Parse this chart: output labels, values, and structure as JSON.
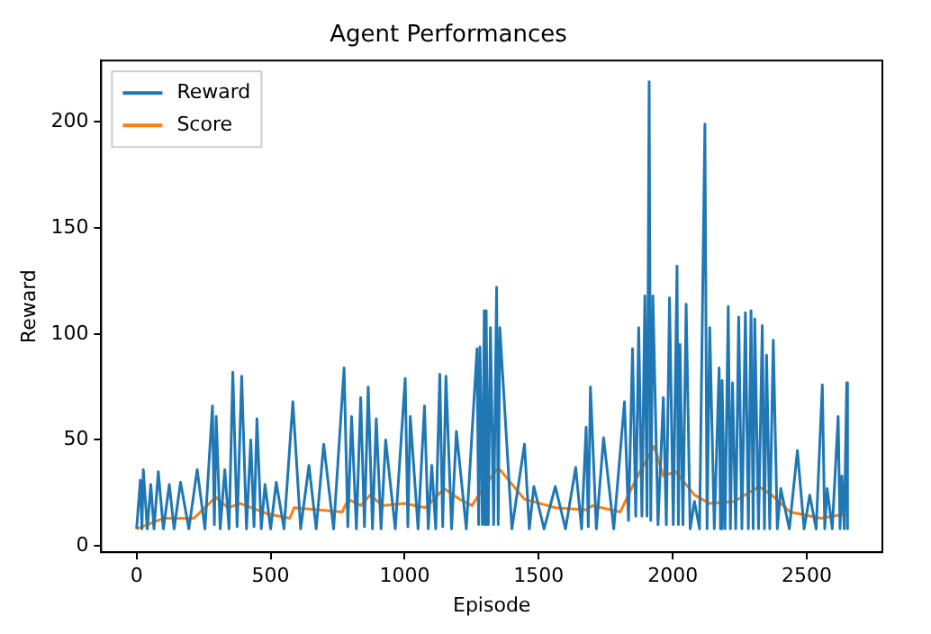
{
  "chart_data": {
    "type": "line",
    "title": "Agent Performances",
    "xlabel": "Episode",
    "ylabel": "Reward",
    "xlim": [
      -132,
      2782
    ],
    "xticks": [
      0,
      500,
      1000,
      1500,
      2000,
      2500
    ],
    "ylim": [
      -3,
      229
    ],
    "yticks": [
      0,
      50,
      100,
      150,
      200
    ],
    "grid": false,
    "legend": "top left",
    "marker": "none",
    "line_style": "solid",
    "series": [
      {
        "name": "Reward",
        "color": "#1f77b4",
        "x": [
          0,
          14,
          20,
          25,
          40,
          53,
          65,
          81,
          100,
          122,
          140,
          164,
          195,
          226,
          255,
          283,
          290,
          297,
          312,
          329,
          345,
          359,
          375,
          392,
          410,
          426,
          438,
          449,
          465,
          479,
          500,
          521,
          550,
          583,
          612,
          643,
          670,
          698,
          735,
          774,
          788,
          802,
          820,
          836,
          850,
          864,
          880,
          894,
          912,
          929,
          965,
          1002,
          1012,
          1021,
          1050,
          1074,
          1088,
          1101,
          1116,
          1131,
          1142,
          1154,
          1175,
          1193,
          1230,
          1270,
          1276,
          1281,
          1290,
          1297,
          1300,
          1304,
          1312,
          1320,
          1332,
          1343,
          1349,
          1355,
          1400,
          1447,
          1465,
          1482,
          1520,
          1562,
          1600,
          1638,
          1660,
          1677,
          1685,
          1693,
          1715,
          1742,
          1780,
          1820,
          1835,
          1850,
          1862,
          1873,
          1885,
          1896,
          1904,
          1912,
          1918,
          1926,
          1945,
          1965,
          1976,
          1988,
          2002,
          2016,
          2021,
          2027,
          2038,
          2050,
          2065,
          2081,
          2100,
          2120,
          2128,
          2138,
          2155,
          2173,
          2178,
          2184,
          2195,
          2207,
          2215,
          2223,
          2235,
          2246,
          2258,
          2271,
          2282,
          2292,
          2300,
          2306,
          2320,
          2334,
          2342,
          2350,
          2362,
          2375,
          2390,
          2403,
          2435,
          2465,
          2490,
          2511,
          2535,
          2558,
          2567,
          2576,
          2595,
          2617,
          2624,
          2631,
          2640,
          2649,
          2652
        ],
        "values": [
          8,
          31,
          8,
          36,
          8,
          29,
          8,
          35,
          8,
          29,
          8,
          30,
          8,
          36,
          8,
          66,
          10,
          61,
          8,
          36,
          8,
          82,
          9,
          80,
          8,
          50,
          9,
          60,
          8,
          29,
          8,
          30,
          8,
          68,
          8,
          38,
          8,
          48,
          8,
          84,
          9,
          61,
          8,
          70,
          9,
          75,
          8,
          60,
          8,
          50,
          8,
          79,
          9,
          61,
          8,
          66,
          8,
          38,
          8,
          81,
          9,
          80,
          8,
          54,
          8,
          93,
          10,
          94,
          10,
          111,
          10,
          111,
          10,
          103,
          10,
          122,
          10,
          103,
          8,
          48,
          8,
          28,
          8,
          28,
          8,
          37,
          8,
          56,
          9,
          75,
          8,
          51,
          8,
          68,
          12,
          93,
          14,
          103,
          14,
          118,
          14,
          219,
          12,
          118,
          10,
          70,
          10,
          117,
          10,
          132,
          10,
          95,
          10,
          114,
          8,
          21,
          8,
          199,
          8,
          103,
          8,
          84,
          8,
          78,
          8,
          113,
          8,
          77,
          8,
          108,
          8,
          110,
          8,
          111,
          8,
          107,
          8,
          104,
          8,
          90,
          8,
          97,
          8,
          27,
          8,
          45,
          8,
          24,
          8,
          76,
          8,
          27,
          8,
          61,
          8,
          33,
          8,
          77,
          8
        ]
      },
      {
        "name": "Score",
        "color": "#ff7f0e",
        "x": [
          0,
          99,
          214,
          295,
          341,
          387,
          491,
          571,
          588,
          767,
          790,
          836,
          871,
          917,
          998,
          1078,
          1147,
          1205,
          1251,
          1297,
          1343,
          1355,
          1447,
          1562,
          1677,
          1700,
          1804,
          1873,
          1931,
          1965,
          2011,
          2081,
          2138,
          2230,
          2322,
          2369,
          2438,
          2553,
          2645
        ],
        "values": [
          8,
          13,
          13,
          23,
          18,
          20,
          15,
          13,
          18,
          16,
          22,
          19,
          24,
          19,
          20,
          18,
          27,
          22,
          19,
          28,
          36,
          36,
          22,
          18,
          17,
          19,
          16,
          34,
          47,
          33,
          35,
          24,
          20,
          21,
          28,
          24,
          16,
          13,
          15
        ]
      }
    ]
  }
}
